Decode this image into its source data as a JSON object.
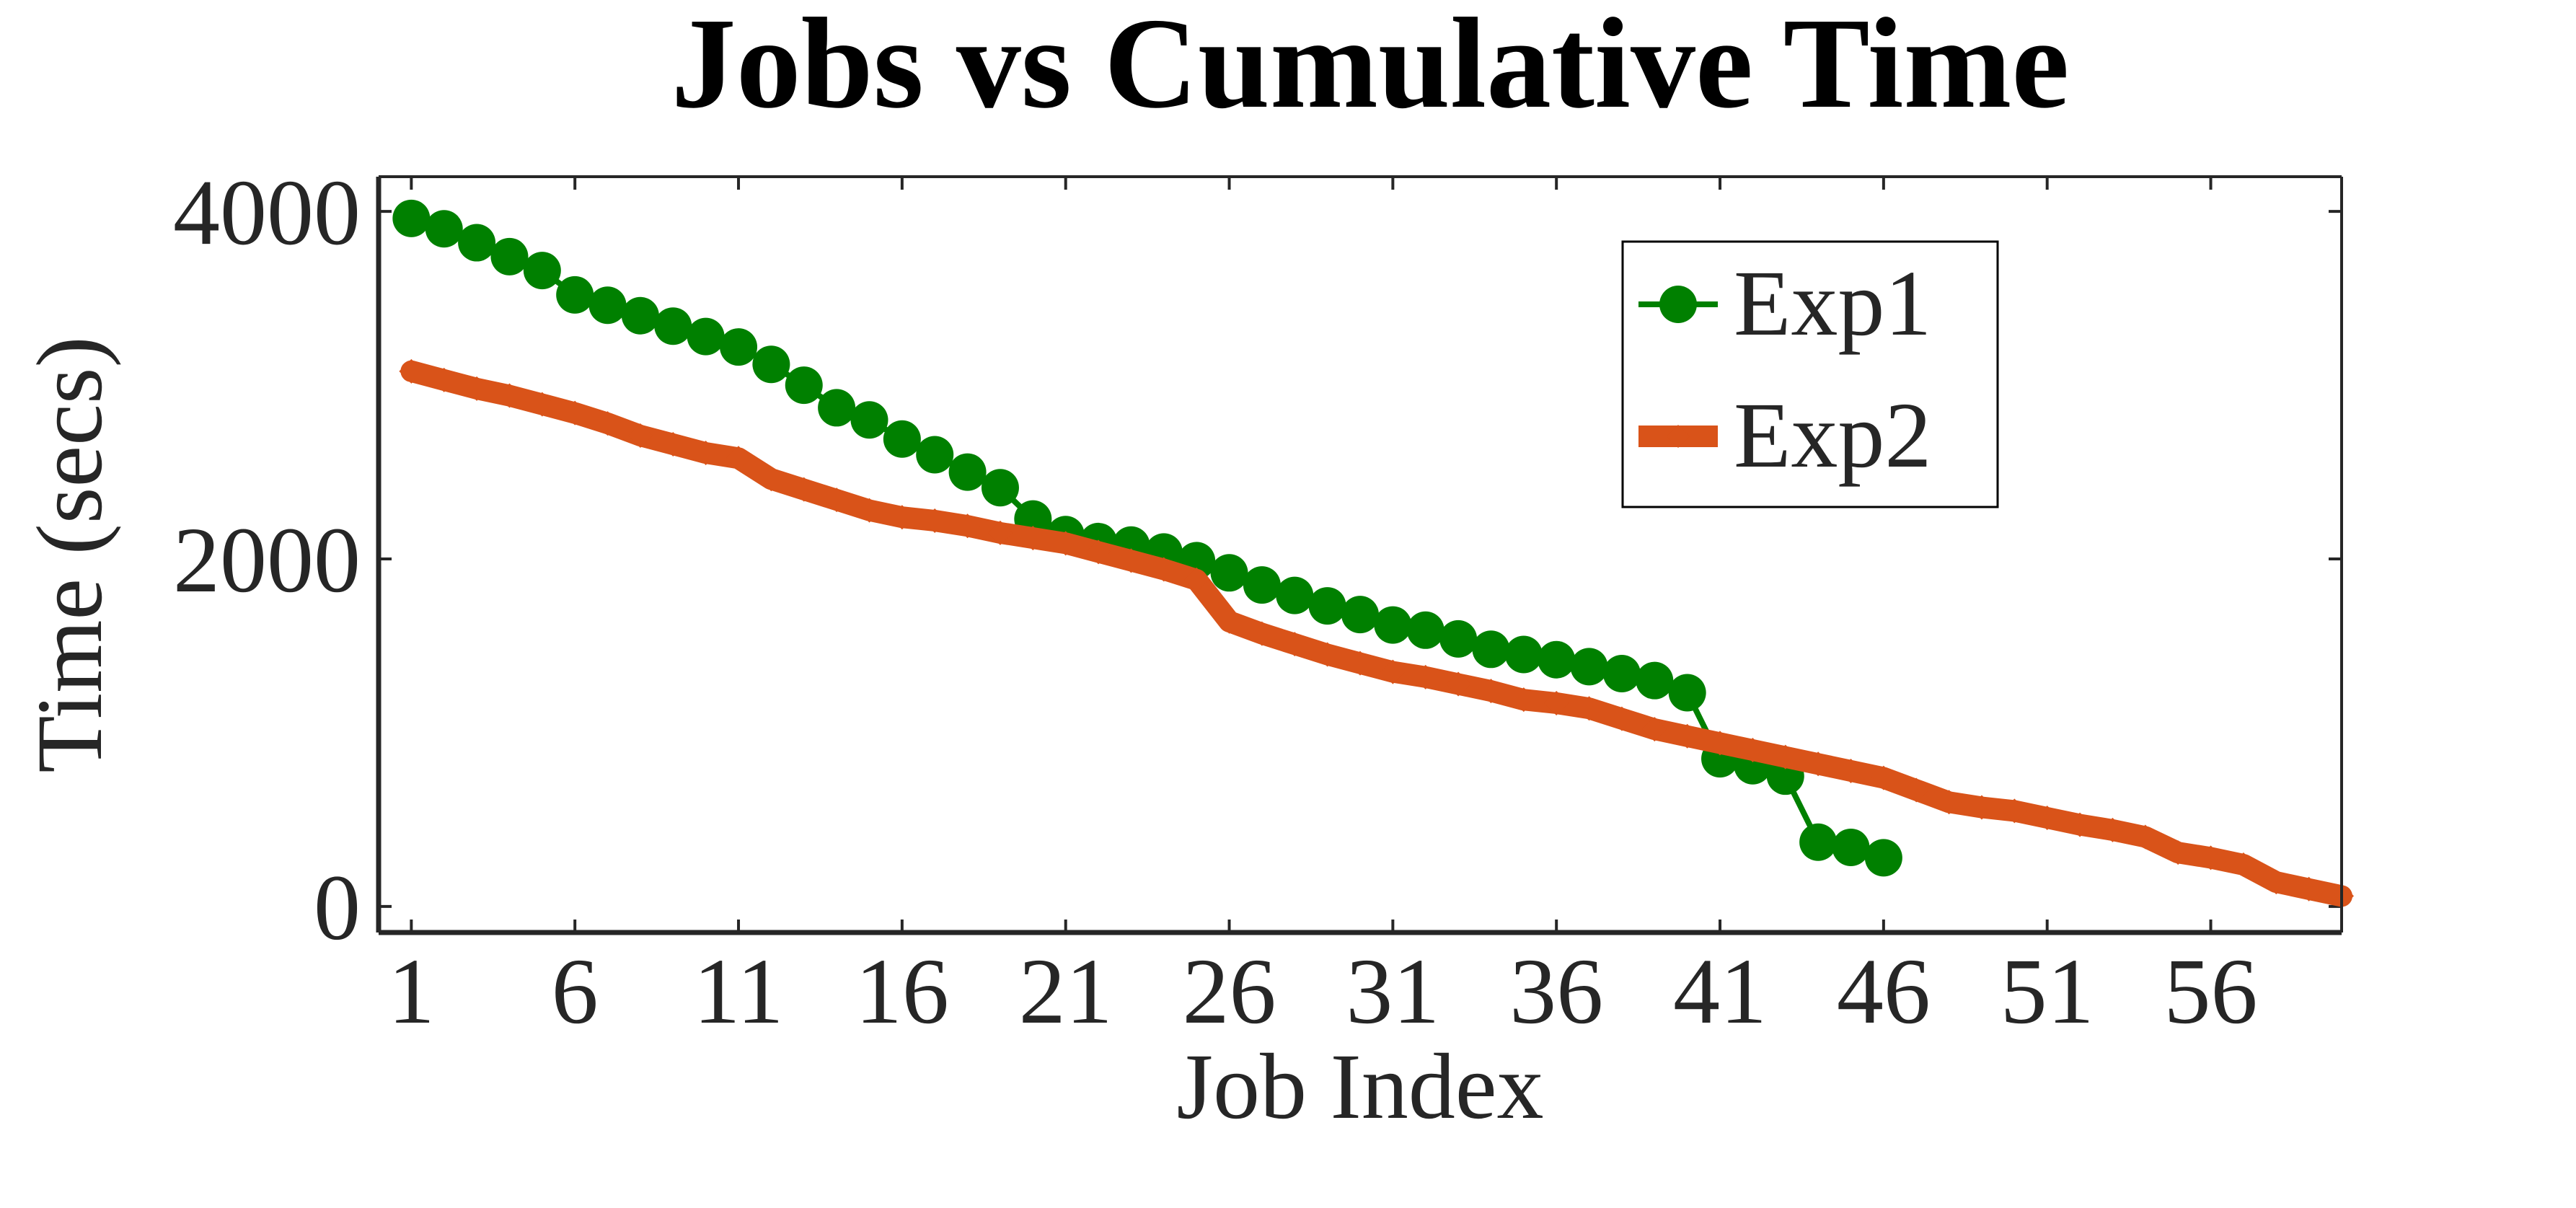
{
  "chart_data": {
    "type": "line",
    "title": "Jobs vs Cumulative Time",
    "xlabel": "Job Index",
    "ylabel": "Time (secs)",
    "xlim": [
      0,
      60
    ],
    "ylim": [
      -150,
      4200
    ],
    "x_ticks": [
      1,
      6,
      11,
      16,
      21,
      26,
      31,
      36,
      41,
      46,
      51,
      56
    ],
    "y_ticks": [
      0,
      2000,
      4000
    ],
    "legend_position": "top-right",
    "series": [
      {
        "name": "Exp1",
        "color": "#008000",
        "marker": "circle",
        "x": [
          1,
          2,
          3,
          4,
          5,
          6,
          7,
          8,
          9,
          10,
          11,
          12,
          13,
          14,
          15,
          16,
          17,
          18,
          19,
          20,
          21,
          22,
          23,
          24,
          25,
          26,
          27,
          28,
          29,
          30,
          31,
          32,
          33,
          34,
          35,
          36,
          37,
          38,
          39,
          40,
          41,
          42,
          43,
          44,
          45,
          46
        ],
        "values": [
          3960,
          3900,
          3820,
          3740,
          3660,
          3520,
          3460,
          3400,
          3340,
          3280,
          3220,
          3120,
          3000,
          2870,
          2800,
          2690,
          2600,
          2500,
          2410,
          2230,
          2140,
          2100,
          2080,
          2040,
          1990,
          1920,
          1850,
          1790,
          1730,
          1680,
          1620,
          1590,
          1540,
          1480,
          1450,
          1420,
          1380,
          1340,
          1300,
          1230,
          850,
          810,
          750,
          370,
          340,
          280
        ]
      },
      {
        "name": "Exp2",
        "color": "#D95319",
        "marker": "diamond",
        "x": [
          1,
          2,
          3,
          4,
          5,
          6,
          7,
          8,
          9,
          10,
          11,
          12,
          13,
          14,
          15,
          16,
          17,
          18,
          19,
          20,
          21,
          22,
          23,
          24,
          25,
          26,
          27,
          28,
          29,
          30,
          31,
          32,
          33,
          34,
          35,
          36,
          37,
          38,
          39,
          40,
          41,
          42,
          43,
          44,
          45,
          46,
          47,
          48,
          49,
          50,
          51,
          52,
          53,
          54,
          55,
          56,
          57,
          58,
          59,
          60
        ],
        "values": [
          3080,
          3030,
          2980,
          2940,
          2890,
          2840,
          2780,
          2710,
          2660,
          2610,
          2580,
          2460,
          2400,
          2340,
          2280,
          2240,
          2220,
          2190,
          2150,
          2120,
          2090,
          2040,
          1990,
          1940,
          1880,
          1640,
          1570,
          1510,
          1450,
          1400,
          1350,
          1320,
          1280,
          1240,
          1190,
          1170,
          1140,
          1080,
          1020,
          980,
          940,
          900,
          860,
          820,
          780,
          740,
          670,
          600,
          570,
          550,
          510,
          470,
          440,
          400,
          310,
          280,
          240,
          140,
          100,
          60
        ]
      }
    ]
  }
}
